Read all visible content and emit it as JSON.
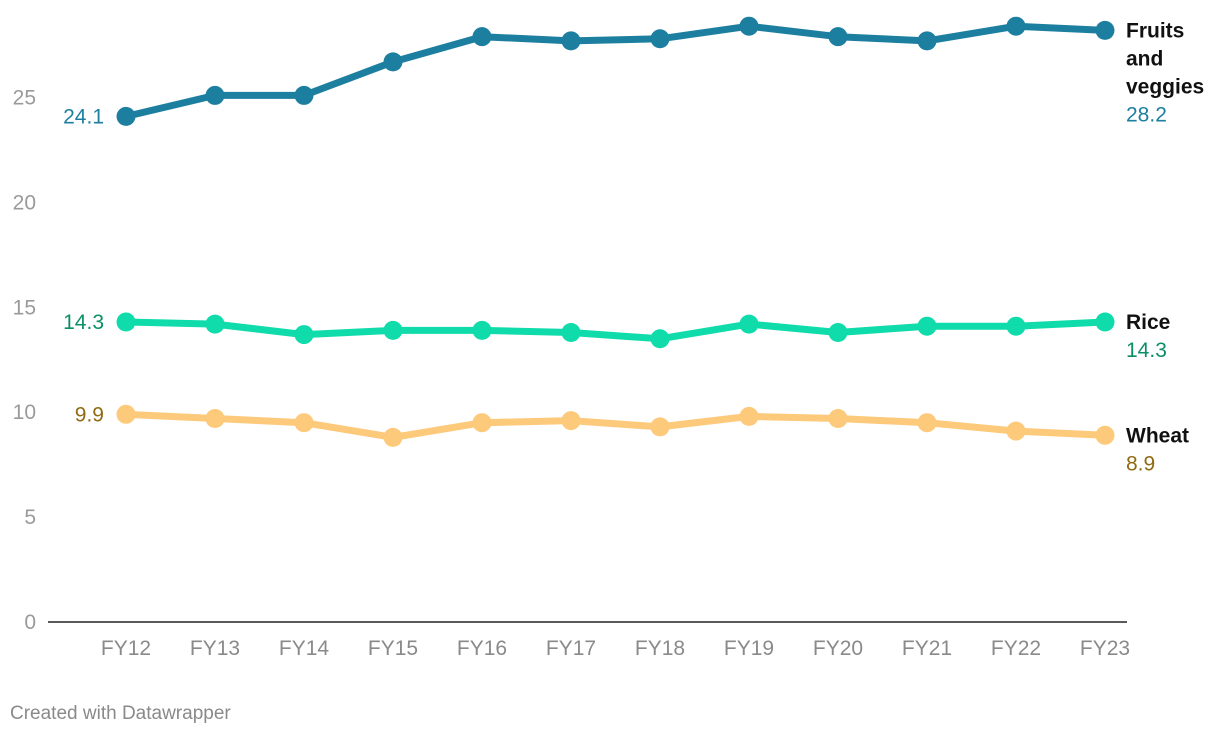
{
  "chart_data": {
    "type": "line",
    "x": [
      "FY12",
      "FY13",
      "FY14",
      "FY15",
      "FY16",
      "FY17",
      "FY18",
      "FY19",
      "FY20",
      "FY21",
      "FY22",
      "FY23"
    ],
    "ylim": [
      0,
      28.6
    ],
    "yticks": [
      0,
      5,
      10,
      15,
      20,
      25
    ],
    "grid": false,
    "legend": "direct labels at line ends",
    "series": [
      {
        "name": [
          "Fruits",
          "and",
          "veggies"
        ],
        "color": "#1d7fa0",
        "label_color": "#1d7fa0",
        "values": [
          24.1,
          25.1,
          25.1,
          26.7,
          27.9,
          27.7,
          27.8,
          28.4,
          27.9,
          27.7,
          28.4,
          28.2
        ],
        "start_label": "24.1",
        "end_label": "28.2"
      },
      {
        "name": [
          "Rice"
        ],
        "color": "#0fdcaa",
        "label_color": "#0a8f66",
        "values": [
          14.3,
          14.2,
          13.7,
          13.9,
          13.9,
          13.8,
          13.5,
          14.2,
          13.8,
          14.1,
          14.1,
          14.3
        ],
        "start_label": "14.3",
        "end_label": "14.3"
      },
      {
        "name": [
          "Wheat"
        ],
        "color": "#fdc97a",
        "label_color": "#8f6a12",
        "values": [
          9.9,
          9.7,
          9.5,
          8.8,
          9.5,
          9.6,
          9.3,
          9.8,
          9.7,
          9.5,
          9.1,
          8.9
        ],
        "start_label": "9.9",
        "end_label": "8.9"
      }
    ]
  },
  "footer": {
    "credit": "Created with Datawrapper"
  }
}
